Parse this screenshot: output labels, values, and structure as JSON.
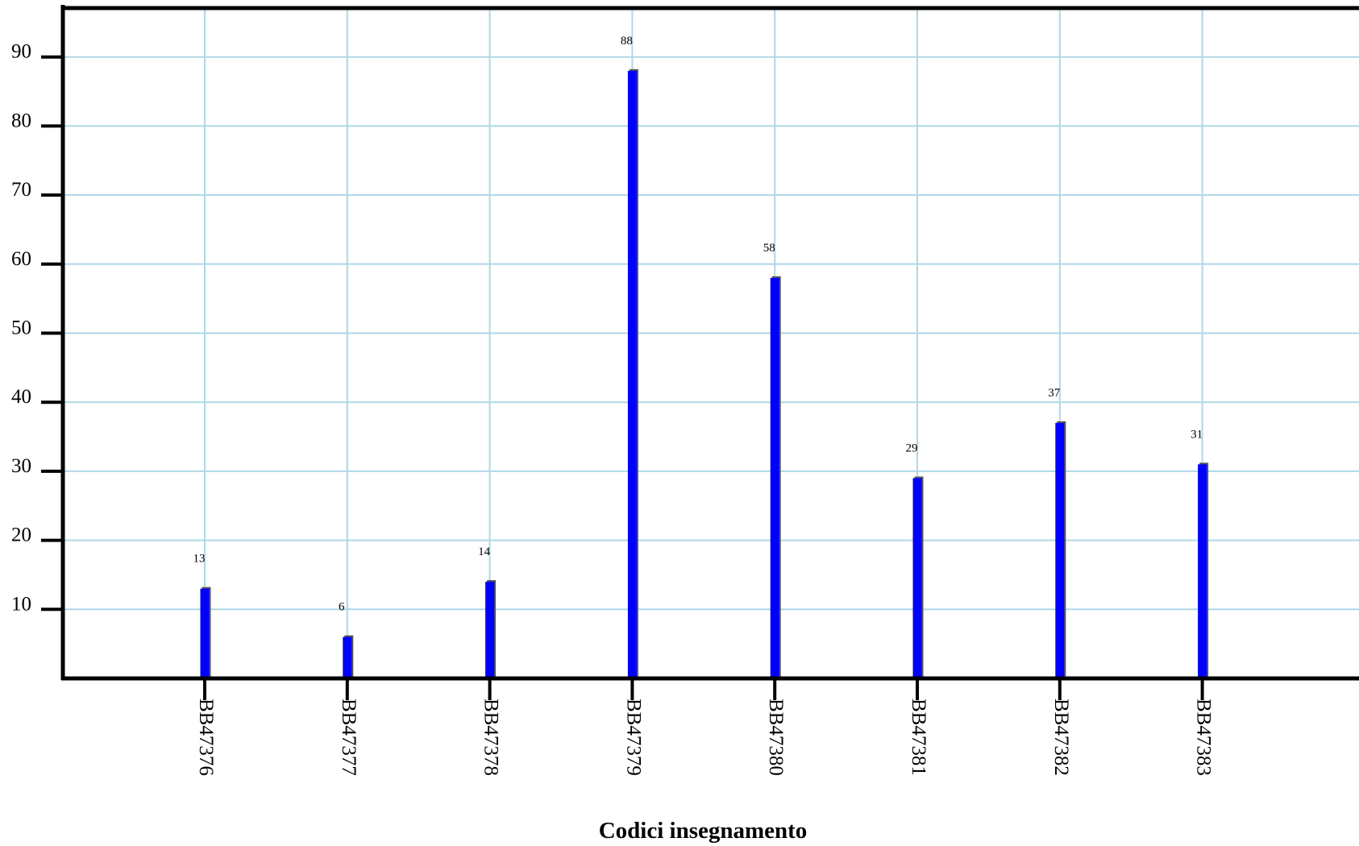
{
  "chart_data": {
    "type": "bar",
    "title": "",
    "xlabel": "Codici insegnamento",
    "ylabel": "",
    "categories": [
      "BB47376",
      "BB47377",
      "BB47378",
      "BB47379",
      "BB47380",
      "BB47381",
      "BB47382",
      "BB47383"
    ],
    "values": [
      13,
      6,
      14,
      88,
      58,
      29,
      37,
      31
    ],
    "data_labels": [
      "13",
      "6",
      "14",
      "88",
      "58",
      "29",
      "37",
      "31"
    ],
    "yticks": [
      10,
      20,
      30,
      40,
      50,
      60,
      70,
      80,
      90
    ],
    "ylim": [
      0,
      97
    ],
    "grid": true,
    "legend": "none",
    "colors": {
      "bar": "#0000ff",
      "bar_shadow": "#555555",
      "grid": "#add8e6",
      "axis": "#000000"
    }
  }
}
